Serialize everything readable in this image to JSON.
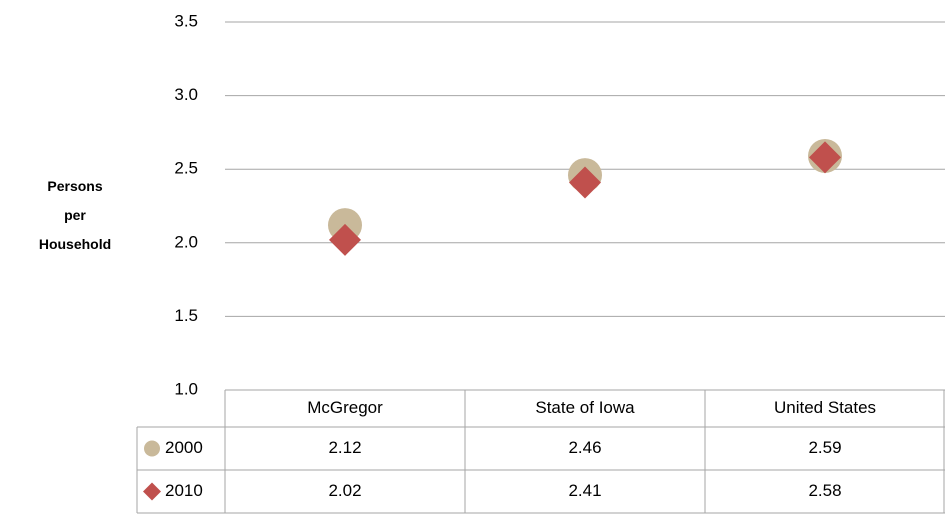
{
  "chart_data": {
    "type": "line",
    "markers_only": true,
    "y_label": "Persons per Household",
    "categories": [
      "McGregor",
      "State of Iowa",
      "United States"
    ],
    "series": [
      {
        "name": "2000",
        "color": "#c9b99a",
        "marker": "circle",
        "values": [
          2.12,
          2.46,
          2.59
        ]
      },
      {
        "name": "2010",
        "color": "#c0504d",
        "marker": "diamond",
        "values": [
          2.02,
          2.41,
          2.58
        ]
      }
    ],
    "ylim": [
      1,
      3.5
    ],
    "yticks": [
      {
        "value": 1,
        "label": "1.0"
      },
      1.5,
      {
        "value": 2,
        "label": "2.0"
      },
      2.5,
      {
        "value": 3,
        "label": "3.0"
      },
      3.5
    ],
    "grid": true,
    "data_table": true
  }
}
